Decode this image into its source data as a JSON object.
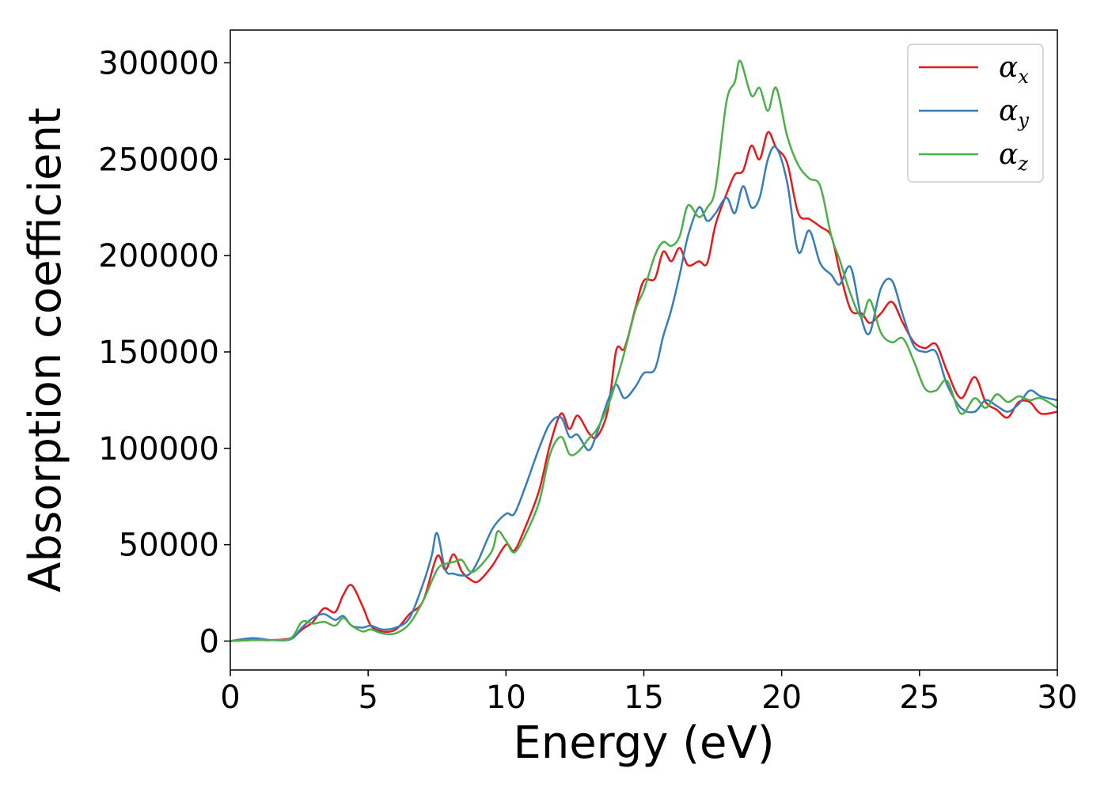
{
  "chart_data": {
    "type": "line",
    "title": "",
    "xlabel": "Energy (eV)",
    "ylabel": "Absorption coefficient",
    "xlim": [
      0,
      30
    ],
    "ylim": [
      -15000,
      317000
    ],
    "xticks": [
      0,
      5,
      10,
      15,
      20,
      25,
      30
    ],
    "xtick_labels": [
      "0",
      "5",
      "10",
      "15",
      "20",
      "25",
      "30"
    ],
    "yticks": [
      0,
      50000,
      100000,
      150000,
      200000,
      250000,
      300000
    ],
    "ytick_labels": [
      "0",
      "50000",
      "100000",
      "150000",
      "200000",
      "250000",
      "300000"
    ],
    "grid": false,
    "legend_position": "top-right",
    "series": [
      {
        "name": "αx",
        "symbol": "α",
        "subscript": "x",
        "color": "#e41a1c",
        "points": [
          [
            0,
            0
          ],
          [
            0.8,
            500
          ],
          [
            1.5,
            500
          ],
          [
            2.2,
            1500
          ],
          [
            2.6,
            6000
          ],
          [
            3,
            10000
          ],
          [
            3.4,
            17000
          ],
          [
            3.8,
            15000
          ],
          [
            4.1,
            24000
          ],
          [
            4.4,
            29000
          ],
          [
            4.8,
            18000
          ],
          [
            5.1,
            8000
          ],
          [
            5.5,
            5000
          ],
          [
            6,
            6000
          ],
          [
            6.5,
            14000
          ],
          [
            7,
            21000
          ],
          [
            7.5,
            44000
          ],
          [
            7.8,
            37000
          ],
          [
            8.1,
            45000
          ],
          [
            8.4,
            36000
          ],
          [
            8.7,
            32000
          ],
          [
            9.0,
            31000
          ],
          [
            9.5,
            39000
          ],
          [
            10.0,
            50000
          ],
          [
            10.3,
            47000
          ],
          [
            10.7,
            59000
          ],
          [
            11.2,
            78000
          ],
          [
            11.6,
            102000
          ],
          [
            12.0,
            118000
          ],
          [
            12.3,
            110000
          ],
          [
            12.6,
            117000
          ],
          [
            13.0,
            108000
          ],
          [
            13.3,
            106000
          ],
          [
            13.7,
            120000
          ],
          [
            14.0,
            151000
          ],
          [
            14.3,
            152000
          ],
          [
            14.7,
            173000
          ],
          [
            15.0,
            187000
          ],
          [
            15.4,
            188000
          ],
          [
            15.7,
            202000
          ],
          [
            16.0,
            197000
          ],
          [
            16.3,
            204000
          ],
          [
            16.6,
            195000
          ],
          [
            17.0,
            197000
          ],
          [
            17.3,
            196000
          ],
          [
            17.6,
            216000
          ],
          [
            18.0,
            232000
          ],
          [
            18.3,
            242000
          ],
          [
            18.6,
            244000
          ],
          [
            18.9,
            257000
          ],
          [
            19.2,
            250000
          ],
          [
            19.5,
            264000
          ],
          [
            19.8,
            256000
          ],
          [
            20.2,
            248000
          ],
          [
            20.6,
            222000
          ],
          [
            21.0,
            219000
          ],
          [
            21.4,
            215000
          ],
          [
            21.8,
            210000
          ],
          [
            22.1,
            192000
          ],
          [
            22.5,
            172000
          ],
          [
            22.9,
            170000
          ],
          [
            23.2,
            165000
          ],
          [
            23.6,
            170000
          ],
          [
            24.0,
            176000
          ],
          [
            24.4,
            165000
          ],
          [
            24.8,
            155000
          ],
          [
            25.2,
            152000
          ],
          [
            25.6,
            154000
          ],
          [
            26.0,
            140000
          ],
          [
            26.5,
            126000
          ],
          [
            27.0,
            137000
          ],
          [
            27.4,
            124000
          ],
          [
            27.8,
            120000
          ],
          [
            28.2,
            116000
          ],
          [
            28.6,
            124000
          ],
          [
            29.0,
            124000
          ],
          [
            29.4,
            118000
          ],
          [
            30,
            119000
          ]
        ]
      },
      {
        "name": "αy",
        "symbol": "α",
        "subscript": "y",
        "color": "#377eb8",
        "points": [
          [
            0,
            0
          ],
          [
            0.8,
            1500
          ],
          [
            1.5,
            500
          ],
          [
            2.2,
            1000
          ],
          [
            2.6,
            7000
          ],
          [
            3,
            12000
          ],
          [
            3.4,
            14000
          ],
          [
            3.8,
            11000
          ],
          [
            4.1,
            13000
          ],
          [
            4.4,
            8000
          ],
          [
            4.8,
            7000
          ],
          [
            5.1,
            8000
          ],
          [
            5.5,
            6000
          ],
          [
            6,
            7000
          ],
          [
            6.5,
            12000
          ],
          [
            7,
            30000
          ],
          [
            7.3,
            44000
          ],
          [
            7.5,
            56000
          ],
          [
            7.8,
            37000
          ],
          [
            8.1,
            35000
          ],
          [
            8.4,
            34000
          ],
          [
            8.7,
            35000
          ],
          [
            9.0,
            42000
          ],
          [
            9.5,
            58000
          ],
          [
            10.0,
            66000
          ],
          [
            10.3,
            66000
          ],
          [
            10.7,
            80000
          ],
          [
            11.2,
            100000
          ],
          [
            11.6,
            113000
          ],
          [
            12.0,
            116000
          ],
          [
            12.3,
            106000
          ],
          [
            12.6,
            107000
          ],
          [
            13.0,
            99000
          ],
          [
            13.3,
            108000
          ],
          [
            13.7,
            125000
          ],
          [
            14.0,
            133000
          ],
          [
            14.3,
            126000
          ],
          [
            14.7,
            132000
          ],
          [
            15.0,
            139000
          ],
          [
            15.4,
            141000
          ],
          [
            15.7,
            158000
          ],
          [
            16.0,
            172000
          ],
          [
            16.3,
            190000
          ],
          [
            16.6,
            210000
          ],
          [
            17.0,
            225000
          ],
          [
            17.3,
            218000
          ],
          [
            17.6,
            222000
          ],
          [
            18.0,
            230000
          ],
          [
            18.3,
            222000
          ],
          [
            18.6,
            236000
          ],
          [
            18.9,
            225000
          ],
          [
            19.2,
            230000
          ],
          [
            19.5,
            250000
          ],
          [
            19.8,
            256000
          ],
          [
            20.2,
            238000
          ],
          [
            20.6,
            202000
          ],
          [
            21.0,
            213000
          ],
          [
            21.4,
            196000
          ],
          [
            21.8,
            190000
          ],
          [
            22.1,
            185000
          ],
          [
            22.5,
            194000
          ],
          [
            22.9,
            167000
          ],
          [
            23.2,
            160000
          ],
          [
            23.6,
            183000
          ],
          [
            24.0,
            187000
          ],
          [
            24.4,
            169000
          ],
          [
            24.8,
            153000
          ],
          [
            25.2,
            150000
          ],
          [
            25.6,
            150000
          ],
          [
            26.0,
            133000
          ],
          [
            26.5,
            121000
          ],
          [
            27.0,
            119000
          ],
          [
            27.4,
            125000
          ],
          [
            27.8,
            122000
          ],
          [
            28.2,
            119000
          ],
          [
            28.6,
            123000
          ],
          [
            29.0,
            130000
          ],
          [
            29.4,
            127000
          ],
          [
            30,
            125000
          ]
        ]
      },
      {
        "name": "αz",
        "symbol": "α",
        "subscript": "z",
        "color": "#4daf4a",
        "points": [
          [
            0,
            0
          ],
          [
            0.8,
            500
          ],
          [
            1.5,
            500
          ],
          [
            2.2,
            1500
          ],
          [
            2.6,
            10000
          ],
          [
            3,
            9000
          ],
          [
            3.4,
            10000
          ],
          [
            3.8,
            8000
          ],
          [
            4.1,
            12000
          ],
          [
            4.4,
            8000
          ],
          [
            4.8,
            5000
          ],
          [
            5.1,
            6000
          ],
          [
            5.5,
            4000
          ],
          [
            6,
            4000
          ],
          [
            6.5,
            9000
          ],
          [
            7,
            21000
          ],
          [
            7.5,
            37000
          ],
          [
            7.8,
            40000
          ],
          [
            8.1,
            41000
          ],
          [
            8.4,
            42000
          ],
          [
            8.7,
            36000
          ],
          [
            9.0,
            38000
          ],
          [
            9.5,
            47000
          ],
          [
            9.7,
            57000
          ],
          [
            10.0,
            52000
          ],
          [
            10.3,
            46000
          ],
          [
            10.7,
            55000
          ],
          [
            11.2,
            72000
          ],
          [
            11.6,
            97000
          ],
          [
            12.0,
            106000
          ],
          [
            12.3,
            97000
          ],
          [
            12.6,
            98000
          ],
          [
            13.0,
            105000
          ],
          [
            13.3,
            110000
          ],
          [
            13.7,
            122000
          ],
          [
            14.0,
            135000
          ],
          [
            14.3,
            150000
          ],
          [
            14.7,
            172000
          ],
          [
            15.0,
            182000
          ],
          [
            15.4,
            200000
          ],
          [
            15.7,
            207000
          ],
          [
            16.0,
            205000
          ],
          [
            16.3,
            210000
          ],
          [
            16.6,
            226000
          ],
          [
            17.0,
            220000
          ],
          [
            17.3,
            225000
          ],
          [
            17.6,
            235000
          ],
          [
            18.0,
            280000
          ],
          [
            18.3,
            290000
          ],
          [
            18.5,
            301000
          ],
          [
            18.9,
            283000
          ],
          [
            19.2,
            287000
          ],
          [
            19.5,
            275000
          ],
          [
            19.8,
            287000
          ],
          [
            20.2,
            262000
          ],
          [
            20.6,
            247000
          ],
          [
            21.0,
            240000
          ],
          [
            21.4,
            236000
          ],
          [
            21.8,
            210000
          ],
          [
            22.1,
            198000
          ],
          [
            22.5,
            180000
          ],
          [
            22.9,
            168000
          ],
          [
            23.2,
            177000
          ],
          [
            23.6,
            160000
          ],
          [
            24.0,
            155000
          ],
          [
            24.4,
            157000
          ],
          [
            24.8,
            145000
          ],
          [
            25.2,
            131000
          ],
          [
            25.6,
            130000
          ],
          [
            26.0,
            135000
          ],
          [
            26.5,
            118000
          ],
          [
            27.0,
            126000
          ],
          [
            27.4,
            121000
          ],
          [
            27.8,
            128000
          ],
          [
            28.2,
            124000
          ],
          [
            28.6,
            127000
          ],
          [
            29.0,
            125000
          ],
          [
            29.4,
            126000
          ],
          [
            30,
            121000
          ]
        ]
      }
    ]
  }
}
